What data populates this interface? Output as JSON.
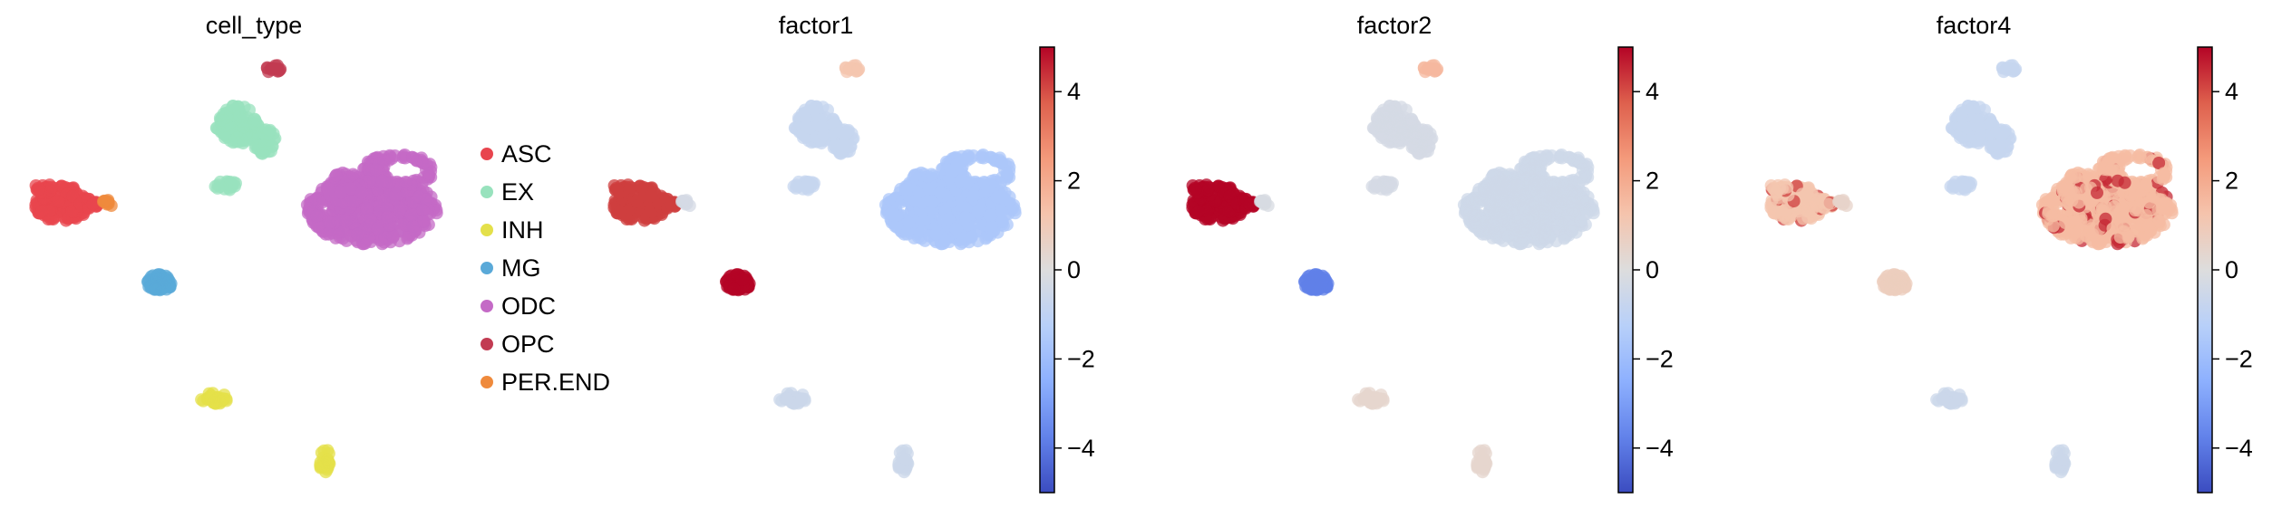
{
  "chart_data": [
    {
      "type": "scatter",
      "title": "cell_type",
      "legend": {
        "placement": "right",
        "entries": [
          {
            "label": "ASC",
            "color": "#e8454e"
          },
          {
            "label": "EX",
            "color": "#98e2bd"
          },
          {
            "label": "INH",
            "color": "#e4e04a"
          },
          {
            "label": "MG",
            "color": "#5aa9d8"
          },
          {
            "label": "ODC",
            "color": "#c46ac6"
          },
          {
            "label": "OPC",
            "color": "#c23b52"
          },
          {
            "label": "PER.END",
            "color": "#ef8a3c"
          }
        ]
      },
      "clusters": [
        {
          "cell_type": "OPC",
          "color": "#c23b52"
        },
        {
          "cell_type": "EX",
          "color": "#98e2bd"
        },
        {
          "cell_type": "ASC",
          "color": "#e8454e"
        },
        {
          "cell_type": "PER.END",
          "color": "#ef8a3c"
        },
        {
          "cell_type": "ODC",
          "color": "#c46ac6"
        },
        {
          "cell_type": "MG",
          "color": "#5aa9d8"
        },
        {
          "cell_type": "INH",
          "color": "#e4e04a"
        }
      ]
    },
    {
      "type": "scatter",
      "title": "factor1",
      "colorbar": {
        "ticks": [
          "4",
          "2",
          "0",
          "−2",
          "−4"
        ],
        "range": [
          -5,
          5
        ]
      },
      "cluster_values": {
        "OPC": 1.2,
        "EX": -0.8,
        "ASC": 4.2,
        "PER.END": -0.3,
        "ODC": -1.6,
        "MG": 5.0,
        "INH": -0.6
      }
    },
    {
      "type": "scatter",
      "title": "factor2",
      "colorbar": {
        "ticks": [
          "4",
          "2",
          "0",
          "−2",
          "−4"
        ],
        "range": [
          -5,
          5
        ]
      },
      "cluster_values": {
        "OPC": 1.6,
        "EX": -0.3,
        "ASC": 5.0,
        "PER.END": -0.2,
        "ODC": -0.5,
        "MG": -3.8,
        "INH": 0.4
      }
    },
    {
      "type": "scatter",
      "title": "factor4",
      "colorbar": {
        "ticks": [
          "4",
          "2",
          "0",
          "−2",
          "−4"
        ],
        "range": [
          -5,
          5
        ]
      },
      "cluster_values": {
        "OPC": -0.8,
        "EX": -0.8,
        "ASC": 1.2,
        "PER.END": 0.5,
        "ODC": 1.5,
        "MG": 0.8,
        "INH": -0.6
      }
    }
  ]
}
